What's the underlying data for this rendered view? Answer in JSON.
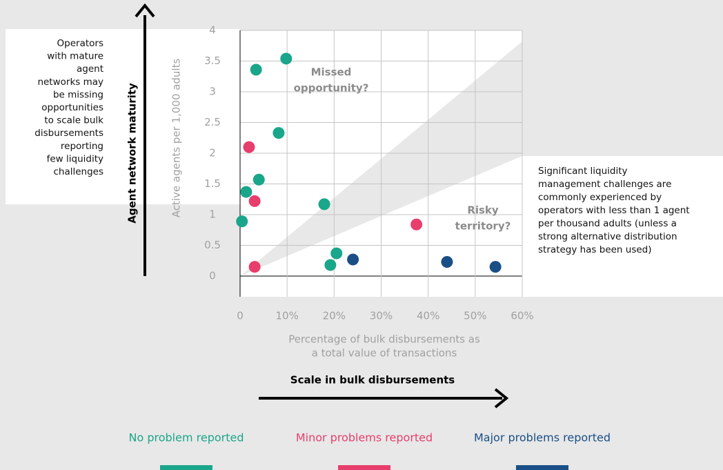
{
  "chart_data": {
    "type": "scatter",
    "xlabel": [
      "Percentage of bulk disbursements as",
      "a total value of transactions"
    ],
    "ylabel": "Active agents per 1,000 adults",
    "xlim": [
      0,
      60
    ],
    "ylim": [
      0,
      4
    ],
    "xticks": [
      0,
      {
        "value": 10,
        "label": "10%"
      },
      {
        "value": 20,
        "label": "20%"
      },
      {
        "value": 30,
        "label": "30%"
      },
      {
        "value": 40,
        "label": "40%"
      },
      {
        "value": 50,
        "label": "50%"
      },
      {
        "value": 60,
        "label": "60%"
      }
    ],
    "yticks": [
      0,
      0.5,
      1,
      1.5,
      2,
      2.5,
      3,
      3.5,
      4
    ],
    "grid": true,
    "series": [
      {
        "name": "No problem reported",
        "color": "#1aa68a",
        "x": [
          3.4,
          9.8,
          8.2,
          4.0,
          1.3,
          0.4,
          17.9,
          20.5,
          19.2
        ],
        "values": [
          3.36,
          3.54,
          2.33,
          1.57,
          1.37,
          0.89,
          1.17,
          0.37,
          0.18
        ]
      },
      {
        "name": "Minor problems reported",
        "color": "#e83e6c",
        "x": [
          1.9,
          3.1,
          37.5,
          3.1
        ],
        "values": [
          2.1,
          1.22,
          0.84,
          0.15
        ]
      },
      {
        "name": "Major problems reported",
        "color": "#1a4f86",
        "x": [
          24.0,
          44.0,
          54.3
        ],
        "values": [
          0.27,
          0.23,
          0.15
        ]
      }
    ],
    "annotations": {
      "missed": [
        "Missed",
        "opportunity?"
      ],
      "risky": [
        "Risky",
        "territory?"
      ],
      "left_note": [
        "Operators",
        "with mature",
        "agent",
        "networks may",
        "be missing",
        "opportunities",
        "to scale bulk",
        "disbursements",
        "reporting",
        "few liquidity",
        "challenges"
      ],
      "right_note": [
        "Significant liquidity",
        "management challenges are",
        "commonly experienced by",
        "operators with less than 1 agent",
        "per thousand adults (unless a",
        "strong alternative distribution",
        "strategy has been used)"
      ]
    },
    "y_arrow_label": "Agent network maturity",
    "x_arrow_label": "Scale in bulk disbursements"
  }
}
